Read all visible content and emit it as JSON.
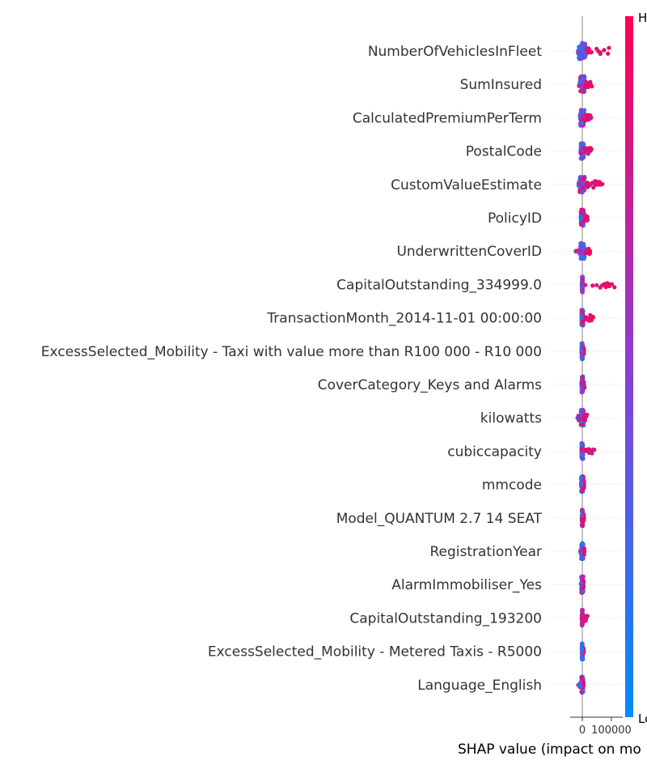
{
  "chart_data": {
    "type": "scatter",
    "subtype": "shap-summary-beeswarm",
    "features": [
      {
        "name": "NumberOfVehiclesInFleet",
        "min": -15000,
        "max": 95000,
        "hi_spread": 90000,
        "core": 12000,
        "lo_color_bias": "mixed"
      },
      {
        "name": "SumInsured",
        "min": -12000,
        "max": 38000,
        "hi_spread": 35000,
        "core": 8000
      },
      {
        "name": "CalculatedPremiumPerTerm",
        "min": -8000,
        "max": 30000,
        "hi_spread": 25000,
        "core": 7000
      },
      {
        "name": "PostalCode",
        "min": -6000,
        "max": 32000,
        "hi_spread": 28000,
        "core": 5000
      },
      {
        "name": "CustomValueEstimate",
        "min": -15000,
        "max": 75000,
        "hi_spread": 70000,
        "core": 9000
      },
      {
        "name": "PolicyID",
        "min": -5000,
        "max": 18000,
        "hi_spread": 14000,
        "core": 5000
      },
      {
        "name": "UnderwrittenCoverID",
        "min": -25000,
        "max": 28000,
        "hi_spread": 25000,
        "core": 8000
      },
      {
        "name": "CapitalOutstanding_334999.0",
        "min": -1500,
        "max": 112000,
        "hi_spread": 112000,
        "core": 1500
      },
      {
        "name": "TransactionMonth_2014-11-01 00:00:00",
        "min": -2500,
        "max": 38000,
        "hi_spread": 36000,
        "core": 3000
      },
      {
        "name": "ExcessSelected_Mobility - Taxi with value more than R100 000 - R10 000",
        "min": -2500,
        "max": 6000,
        "hi_spread": 5000,
        "core": 2500
      },
      {
        "name": "CoverCategory_Keys and Alarms",
        "min": -3000,
        "max": 8000,
        "hi_spread": 6000,
        "core": 2500
      },
      {
        "name": "kilowatts",
        "min": -18000,
        "max": 16000,
        "hi_spread": 8000,
        "core": 5000
      },
      {
        "name": "cubiccapacity",
        "min": -2500,
        "max": 42000,
        "hi_spread": 42000,
        "core": 3000
      },
      {
        "name": "mmcode",
        "min": -3500,
        "max": 6000,
        "hi_spread": 4000,
        "core": 4000
      },
      {
        "name": "Model_QUANTUM 2.7 14 SEAT",
        "min": -1500,
        "max": 6000,
        "hi_spread": 5000,
        "core": 1800
      },
      {
        "name": "RegistrationYear",
        "min": -7000,
        "max": 7000,
        "hi_spread": 5000,
        "core": 4000
      },
      {
        "name": "AlarmImmobiliser_Yes",
        "min": -5000,
        "max": 3500,
        "hi_spread": 3000,
        "core": 3500
      },
      {
        "name": "CapitalOutstanding_193200",
        "min": -1500,
        "max": 18000,
        "hi_spread": 18000,
        "core": 1500
      },
      {
        "name": "ExcessSelected_Mobility - Metered Taxis - R5000",
        "min": -1500,
        "max": 5000,
        "hi_spread": 4000,
        "core": 2000
      },
      {
        "name": "Language_English",
        "min": -15000,
        "max": 3500,
        "hi_spread": 3000,
        "core": 3000
      }
    ],
    "x_ticks": [
      0,
      100000
    ],
    "x_tick_labels": [
      "0",
      "100000"
    ],
    "xlim": [
      -20000,
      125000
    ],
    "xlabel": "SHAP value (impact on mo",
    "colorbar": {
      "high_label": "Hi",
      "low_label": "Lo",
      "high_color": "#ff0052",
      "low_color": "#008bfb"
    },
    "grid": false,
    "legend": "right colorbar"
  }
}
